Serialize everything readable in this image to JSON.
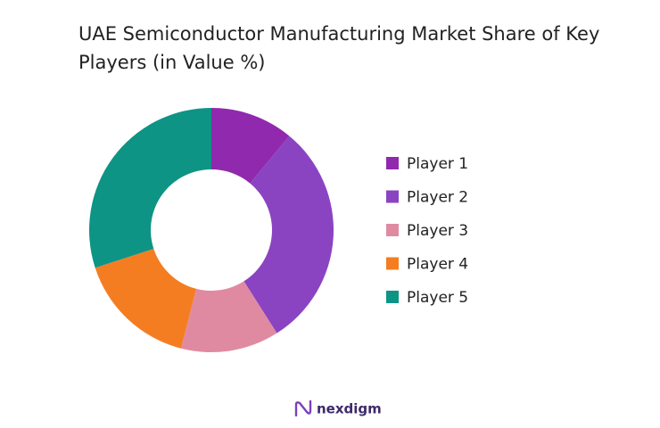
{
  "chart_data": {
    "type": "donut",
    "title": "UAE Semiconductor Manufacturing Market Share of Key Players (in Value %)",
    "series": [
      {
        "name": "Player 1",
        "color": "#9029ad",
        "value": 11
      },
      {
        "name": "Player 2",
        "color": "#8a44c2",
        "value": 30
      },
      {
        "name": "Player 3",
        "color": "#e08aa2",
        "value": 13
      },
      {
        "name": "Player 4",
        "color": "#f47d22",
        "value": 16
      },
      {
        "name": "Player 5",
        "color": "#0d9485",
        "value": 30
      }
    ],
    "legend": "right"
  },
  "brand": "nexdigm"
}
